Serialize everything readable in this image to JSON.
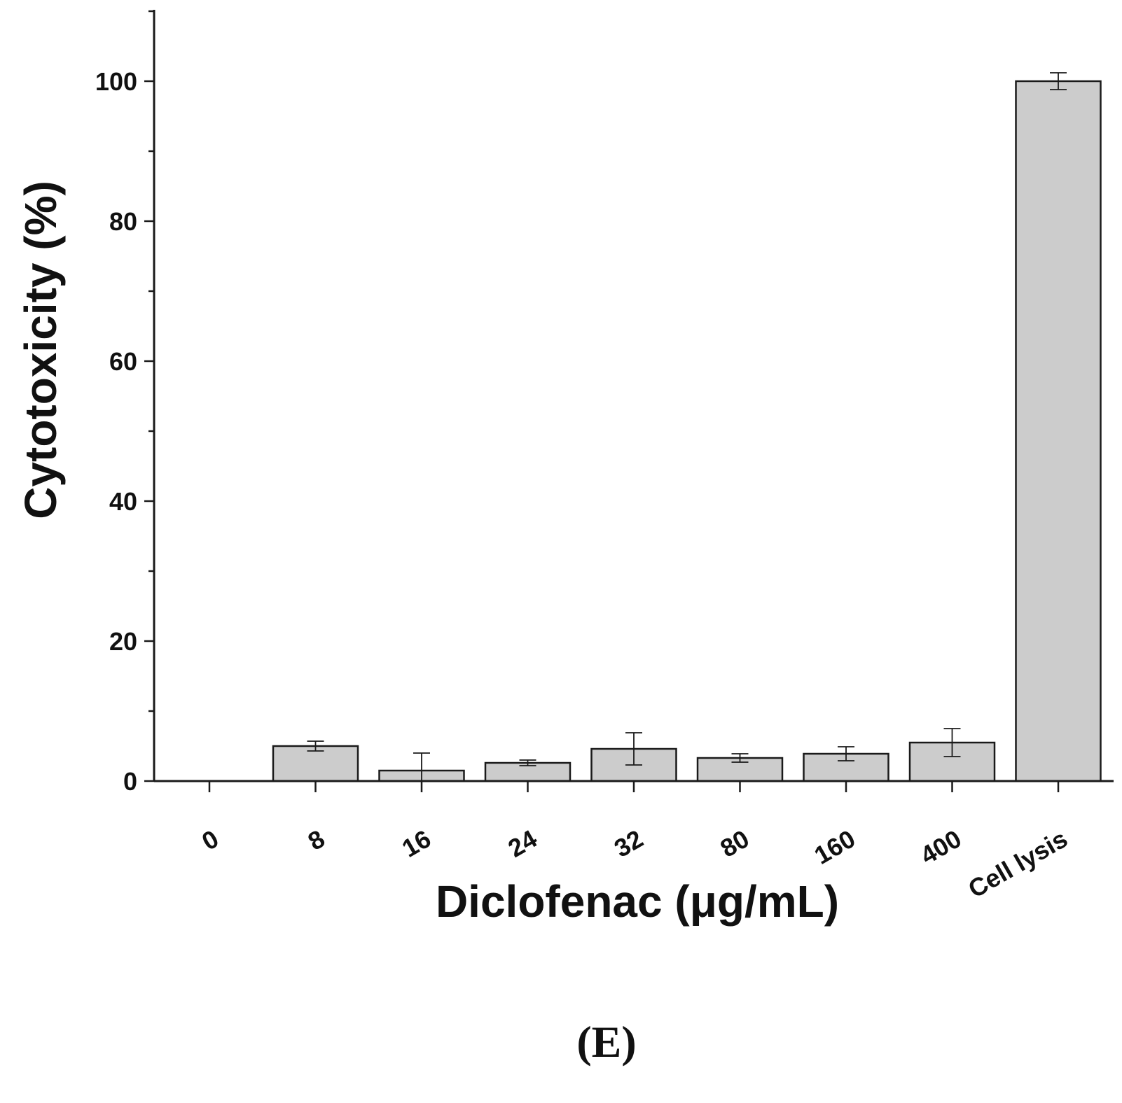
{
  "panel_label": "(E)",
  "chart_data": {
    "type": "bar",
    "title": "",
    "xlabel": "Diclofenac (μg/mL)",
    "ylabel": "Cytotoxicity (%)",
    "categories": [
      "0",
      "8",
      "16",
      "24",
      "32",
      "80",
      "160",
      "400",
      "Cell lysis"
    ],
    "values": [
      0,
      5.0,
      1.5,
      2.6,
      4.6,
      3.3,
      3.9,
      5.5,
      100
    ],
    "errors": [
      0,
      0.7,
      2.5,
      0.4,
      2.3,
      0.6,
      1.0,
      2.0,
      1.2
    ],
    "ylim": [
      0,
      110
    ],
    "yticks": [
      0,
      20,
      40,
      60,
      80,
      100
    ],
    "grid": false,
    "colors": {
      "bar_fill": "#cccccc",
      "bar_stroke": "#1a1a1a",
      "axis": "#1a1a1a"
    }
  }
}
